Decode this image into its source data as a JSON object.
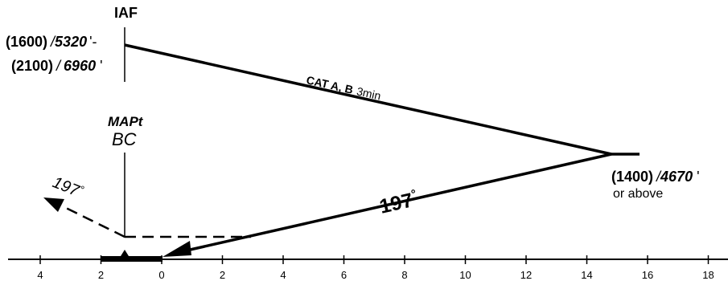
{
  "iaf": {
    "name": "IAF",
    "alt1_bold": "(1600)",
    "alt1_sep": "/",
    "alt1_ital": "5320",
    "alt1_tick": "'-",
    "alt2_bold": "(2100)",
    "alt2_sep": "/",
    "alt2_ital": "6960",
    "alt2_tick": "'"
  },
  "outbound": {
    "cat_label": "CAT A, B",
    "time_label": "3min"
  },
  "turn": {
    "alt_bold": "(1400)",
    "alt_sep": "/",
    "alt_ital": "4670",
    "alt_tick": "'",
    "note": "or above"
  },
  "inbound": {
    "course": "197",
    "degree": "°"
  },
  "mapt": {
    "title": "MAPt",
    "name": "BC"
  },
  "missed": {
    "course": "197",
    "degree": "°"
  },
  "scale": {
    "ticks": [
      "4",
      "2",
      "0",
      "2",
      "4",
      "6",
      "8",
      "10",
      "12",
      "14",
      "16",
      "18"
    ]
  }
}
